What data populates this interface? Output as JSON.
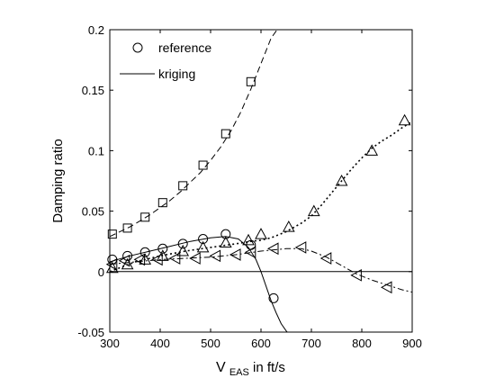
{
  "chart_data": {
    "type": "line",
    "title": "",
    "xlabel": "V_EAS in ft/s",
    "xlabel_main": "V",
    "xlabel_sub": "EAS",
    "xlabel_rest": " in ft/s",
    "ylabel": "Damping ratio",
    "xlim": [
      300,
      900
    ],
    "ylim": [
      -0.05,
      0.2
    ],
    "xticks": [
      300,
      400,
      500,
      600,
      700,
      800,
      900
    ],
    "yticks": [
      -0.05,
      0,
      0.05,
      0.1,
      0.15,
      0.2
    ],
    "ytick_labels": [
      "-0.05",
      "0",
      "0.05",
      "0.1",
      "0.15",
      "0.2"
    ],
    "zero_line": 0,
    "grid": false,
    "legend": {
      "position": "top-left",
      "entries": [
        {
          "label": "reference",
          "marker": "circle"
        },
        {
          "label": "kriging",
          "line": "solid"
        }
      ]
    },
    "series": [
      {
        "marker": "square",
        "line": "dashed",
        "reference_points": {
          "x": [
            305,
            335,
            370,
            405,
            445,
            485,
            530,
            580
          ],
          "y": [
            0.031,
            0.036,
            0.045,
            0.057,
            0.071,
            0.088,
            0.114,
            0.157
          ]
        },
        "kriging_curve": {
          "x": [
            300,
            320,
            340,
            360,
            380,
            400,
            420,
            440,
            460,
            480,
            500,
            520,
            540,
            560,
            580,
            600,
            620,
            632
          ],
          "y": [
            0.029,
            0.033,
            0.037,
            0.042,
            0.047,
            0.053,
            0.059,
            0.066,
            0.074,
            0.082,
            0.092,
            0.103,
            0.116,
            0.132,
            0.151,
            0.172,
            0.193,
            0.2
          ]
        }
      },
      {
        "marker": "triangle-up",
        "line": "dotted",
        "reference_points": {
          "x": [
            305,
            335,
            370,
            405,
            445,
            485,
            530,
            575,
            600,
            655,
            705,
            760,
            820,
            885
          ],
          "y": [
            0.003,
            0.006,
            0.01,
            0.013,
            0.017,
            0.02,
            0.024,
            0.026,
            0.031,
            0.037,
            0.05,
            0.075,
            0.1,
            0.125
          ]
        },
        "kriging_curve": {
          "x": [
            300,
            350,
            400,
            450,
            500,
            550,
            580,
            600,
            620,
            650,
            680,
            700,
            720,
            740,
            760,
            780,
            800,
            820,
            840,
            860,
            880,
            900
          ],
          "y": [
            0.0,
            0.008,
            0.013,
            0.017,
            0.02,
            0.023,
            0.025,
            0.026,
            0.028,
            0.033,
            0.04,
            0.046,
            0.055,
            0.065,
            0.075,
            0.085,
            0.094,
            0.102,
            0.108,
            0.113,
            0.119,
            0.124
          ]
        }
      },
      {
        "marker": "circle",
        "line": "solid",
        "reference_points": {
          "x": [
            305,
            335,
            370,
            405,
            445,
            485,
            530,
            580,
            625
          ],
          "y": [
            0.01,
            0.013,
            0.016,
            0.019,
            0.023,
            0.027,
            0.031,
            0.022,
            -0.022
          ]
        },
        "kriging_curve": {
          "x": [
            300,
            340,
            380,
            420,
            460,
            500,
            530,
            555,
            575,
            590,
            600,
            610,
            620,
            630,
            640,
            650,
            652
          ],
          "y": [
            0.008,
            0.013,
            0.017,
            0.021,
            0.025,
            0.028,
            0.029,
            0.027,
            0.02,
            0.01,
            0.0,
            -0.012,
            -0.024,
            -0.034,
            -0.043,
            -0.049,
            -0.05
          ]
        }
      },
      {
        "marker": "triangle-left",
        "line": "dashdot",
        "reference_points": {
          "x": [
            305,
            330,
            360,
            395,
            430,
            470,
            510,
            550,
            580,
            625,
            680,
            730,
            790,
            850
          ],
          "y": [
            0.006,
            0.009,
            0.01,
            0.01,
            0.011,
            0.011,
            0.013,
            0.014,
            0.016,
            0.019,
            0.02,
            0.011,
            -0.003,
            -0.013
          ]
        },
        "kriging_curve": {
          "x": [
            300,
            350,
            400,
            450,
            500,
            550,
            600,
            650,
            680,
            700,
            730,
            760,
            790,
            820,
            850,
            880,
            900
          ],
          "y": [
            0.006,
            0.008,
            0.01,
            0.011,
            0.012,
            0.014,
            0.017,
            0.019,
            0.019,
            0.017,
            0.012,
            0.005,
            -0.002,
            -0.007,
            -0.011,
            -0.015,
            -0.017
          ]
        }
      }
    ]
  }
}
